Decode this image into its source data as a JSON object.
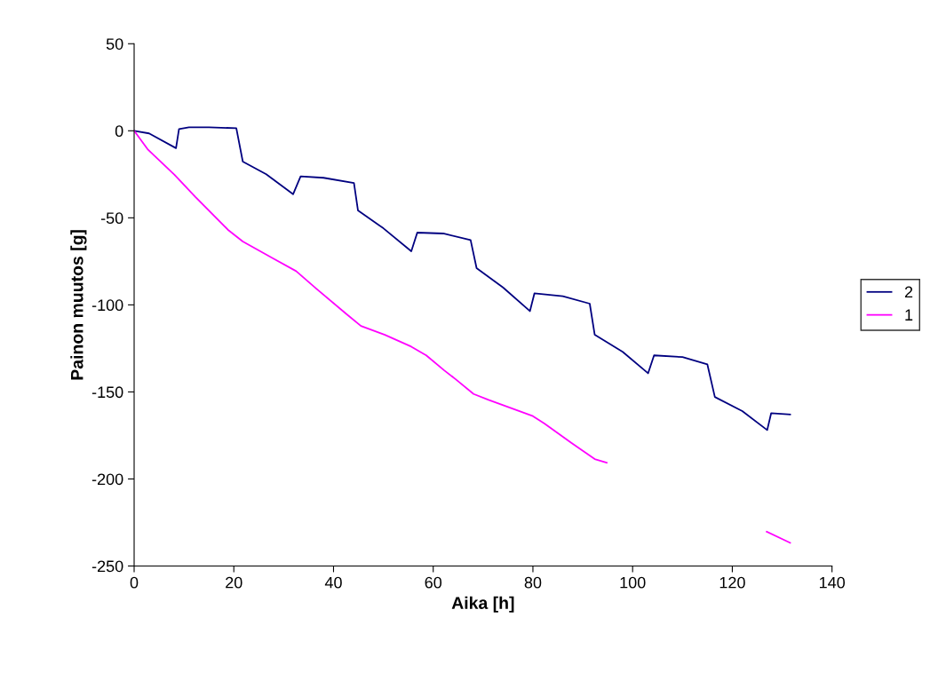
{
  "chart_data": {
    "type": "line",
    "xlabel": "Aika [h]",
    "ylabel": "Painon muutos [g]",
    "xlim": [
      0,
      140
    ],
    "xticks": [
      0,
      20,
      40,
      60,
      80,
      100,
      120,
      140
    ],
    "ylim": [
      -250,
      50
    ],
    "yticks": [
      -250,
      -200,
      -150,
      -100,
      -50,
      0,
      50
    ],
    "grid": false,
    "legend": "right",
    "marker": "none",
    "line_style": "solid",
    "series": [
      {
        "name": "2",
        "color": "#000080",
        "x": [
          0,
          3,
          8.4,
          9,
          11,
          15,
          20.5,
          21.8,
          26.5,
          31.9,
          33.4,
          38,
          44.1,
          44.9,
          50,
          55.6,
          56.8,
          62,
          67.5,
          68.7,
          74,
          79.4,
          80.3,
          86,
          91.4,
          92.4,
          98,
          103.1,
          104.3,
          110,
          115,
          116.5,
          122,
          127,
          127.8,
          131.6
        ],
        "values": [
          0,
          -1.5,
          -10,
          1,
          2,
          2,
          1.5,
          -17.7,
          -25,
          -36.4,
          -26.2,
          -27,
          -30,
          -45.7,
          -56,
          -69.2,
          -58.5,
          -59,
          -62.8,
          -78.9,
          -90,
          -103.6,
          -93.4,
          -95,
          -99.3,
          -117.2,
          -127,
          -139.3,
          -129,
          -130,
          -134.2,
          -152.9,
          -161,
          -171.9,
          -162.2,
          -163
        ]
      },
      {
        "name": "1",
        "color": "#ff00ff",
        "x": [
          0,
          2.8,
          8.1,
          12.3,
          18.8,
          21.8,
          27.7,
          32.5,
          36.6,
          42.6,
          45.5,
          50.3,
          55.6,
          58.6,
          62.2,
          64.5,
          68.1,
          71.1,
          80,
          82.3,
          87.7,
          92.4,
          94.8,
          110,
          126.9,
          131.6
        ],
        "values": [
          0,
          -10.9,
          -25.3,
          -38,
          -56.8,
          -63.6,
          -73,
          -80.6,
          -90.8,
          -105.3,
          -112.1,
          -117.2,
          -124,
          -129,
          -137.6,
          -142.7,
          -151.2,
          -154.6,
          -163.9,
          -168.2,
          -179.2,
          -188.6,
          -190.6,
          null,
          -230.3,
          -236.7
        ]
      }
    ]
  }
}
